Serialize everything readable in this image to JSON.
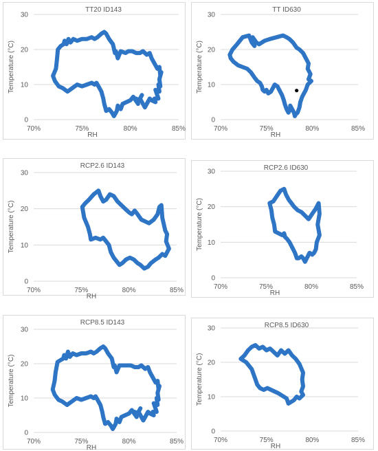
{
  "style": {
    "line_color": "#2e75c6",
    "grid_color": "#d9d9d9",
    "marker_color": "#000000"
  },
  "chart_data": [
    {
      "type": "line",
      "title": "TT20 ID143",
      "xlabel": "RH",
      "ylabel": "Temperature (°C)",
      "xlim": [
        70,
        85
      ],
      "ylim": [
        0,
        30
      ],
      "x_ticks": [
        "70%",
        "75%",
        "80%",
        "85%"
      ],
      "y_ticks": [
        "0",
        "10",
        "20",
        "30"
      ],
      "grid": "y-major",
      "series": [
        {
          "x": [
            72.0,
            72.3,
            72.4,
            72.5,
            72.8,
            73.1,
            73.2,
            73.4,
            73.6,
            73.8,
            74.1,
            74.5,
            75.0,
            75.5,
            76.0,
            76.3,
            76.6,
            77.0,
            77.3,
            77.5,
            77.8,
            78.2,
            78.4,
            78.5,
            78.7,
            79.0,
            79.5,
            79.8,
            80.2,
            80.6,
            81.0,
            81.3,
            81.7,
            82.0,
            82.2,
            82.5,
            82.8,
            83.0,
            83.1,
            83.2,
            83.0,
            83.1,
            82.9,
            83.0,
            82.6,
            82.9,
            82.5,
            82.6,
            82.2,
            82.0,
            81.5,
            81.0,
            81.2,
            80.9,
            80.6,
            80.8,
            80.3,
            80.0,
            79.6,
            79.2,
            79.0,
            78.7,
            78.6,
            78.3,
            78.1,
            77.8,
            77.5,
            77.3,
            77.2,
            77.0,
            76.8,
            76.6,
            76.5,
            76.3,
            76.0,
            75.5,
            75.0,
            74.5,
            74.0,
            73.5,
            73.0,
            72.6,
            72.2,
            72.0
          ],
          "y": [
            12.5,
            14.5,
            17.0,
            20.0,
            21.0,
            21.5,
            22.5,
            21.5,
            23.0,
            22.0,
            23.0,
            22.5,
            23.0,
            23.0,
            23.5,
            23.0,
            23.5,
            24.5,
            25.0,
            24.5,
            23.0,
            21.5,
            19.0,
            19.5,
            17.5,
            19.5,
            19.0,
            19.5,
            19.5,
            19.0,
            19.0,
            19.5,
            18.5,
            19.0,
            17.5,
            16.0,
            14.5,
            15.0,
            12.5,
            13.5,
            11.5,
            9.5,
            10.0,
            8.0,
            8.5,
            6.0,
            6.0,
            5.0,
            5.5,
            6.0,
            3.5,
            6.0,
            7.0,
            5.5,
            6.0,
            4.5,
            6.5,
            5.5,
            5.0,
            4.5,
            3.0,
            4.0,
            2.5,
            1.0,
            2.0,
            3.0,
            2.5,
            4.5,
            6.0,
            8.0,
            9.0,
            10.0,
            10.5,
            10.0,
            10.5,
            10.0,
            9.5,
            10.0,
            9.0,
            8.0,
            9.0,
            9.5,
            11.0,
            12.5
          ]
        }
      ]
    },
    {
      "type": "line",
      "title": "TT ID630",
      "xlabel": "RH",
      "ylabel": "Temperature (°C)",
      "xlim": [
        70,
        85
      ],
      "ylim": [
        0,
        30
      ],
      "x_ticks": [
        "70%",
        "75%",
        "80%",
        "85%"
      ],
      "y_ticks": [
        "0",
        "10",
        "20",
        "30"
      ],
      "grid": "y-major",
      "marker": {
        "x": 78.3,
        "y": 8.3
      },
      "series": [
        {
          "x": [
            71.0,
            71.3,
            71.8,
            72.4,
            73.1,
            73.4,
            73.7,
            73.5,
            73.9,
            74.2,
            74.8,
            75.4,
            76.1,
            76.8,
            77.2,
            77.5,
            77.9,
            78.3,
            78.6,
            79.0,
            79.3,
            79.6,
            79.5,
            79.8,
            79.6,
            79.9,
            79.5,
            79.3,
            79.1,
            78.9,
            78.7,
            78.6,
            78.4,
            78.2,
            78.1,
            78.0,
            77.8,
            77.6,
            77.6,
            77.4,
            77.2,
            77.0,
            76.9,
            76.7,
            76.4,
            76.2,
            75.9,
            75.7,
            75.5,
            75.2,
            75.0,
            74.8,
            74.6,
            74.5,
            74.3,
            74.0,
            73.7,
            73.3,
            72.9,
            72.4,
            71.9,
            71.4,
            71.1,
            71.0
          ],
          "y": [
            18.5,
            20.0,
            21.5,
            23.5,
            24.0,
            22.0,
            21.0,
            23.5,
            22.0,
            21.5,
            22.5,
            23.0,
            23.5,
            24.0,
            23.5,
            23.0,
            22.0,
            20.5,
            20.0,
            19.0,
            17.5,
            16.0,
            14.5,
            13.0,
            11.5,
            11.0,
            10.0,
            8.5,
            7.5,
            6.5,
            5.0,
            3.5,
            2.0,
            1.5,
            1.0,
            2.0,
            3.0,
            4.0,
            3.0,
            2.0,
            3.0,
            4.5,
            5.5,
            7.0,
            8.5,
            9.5,
            10.0,
            9.0,
            8.0,
            7.5,
            8.5,
            8.0,
            8.5,
            9.5,
            10.5,
            11.0,
            12.0,
            13.5,
            14.5,
            15.0,
            15.5,
            16.5,
            17.5,
            18.5
          ]
        }
      ]
    },
    {
      "type": "line",
      "title": "RCP2.6 ID143",
      "xlabel": "RH",
      "ylabel": "Temperature (°C)",
      "xlim": [
        70,
        85
      ],
      "ylim": [
        0,
        30
      ],
      "x_ticks": [
        "70%",
        "75%",
        "80%",
        "85%"
      ],
      "y_ticks": [
        "0",
        "10",
        "20",
        "30"
      ],
      "grid": "y-major",
      "series": [
        {
          "x": [
            75.1,
            75.4,
            75.8,
            76.3,
            76.8,
            77.0,
            77.3,
            77.6,
            78.0,
            78.4,
            78.8,
            79.2,
            79.6,
            80.0,
            80.3,
            80.6,
            80.9,
            81.3,
            81.7,
            82.1,
            82.6,
            83.0,
            83.2,
            83.4,
            83.5,
            83.8,
            84.0,
            83.9,
            84.2,
            83.8,
            83.5,
            83.1,
            82.8,
            82.3,
            82.0,
            81.6,
            81.2,
            80.9,
            80.5,
            80.1,
            79.7,
            79.3,
            79.0,
            78.7,
            78.4,
            78.1,
            77.9,
            77.6,
            77.3,
            77.0,
            76.5,
            76.0,
            75.9,
            75.7,
            75.3,
            75.1
          ],
          "y": [
            20.5,
            21.5,
            22.5,
            24.0,
            25.0,
            23.5,
            22.0,
            22.5,
            24.0,
            23.5,
            22.0,
            21.0,
            20.0,
            19.0,
            18.5,
            19.5,
            18.5,
            17.0,
            16.5,
            16.0,
            17.0,
            18.5,
            20.5,
            21.0,
            17.5,
            14.0,
            13.0,
            11.0,
            9.0,
            7.0,
            7.5,
            6.5,
            6.0,
            5.0,
            4.0,
            3.5,
            4.5,
            5.0,
            6.0,
            6.5,
            6.0,
            5.0,
            4.5,
            5.5,
            6.5,
            8.0,
            10.0,
            11.0,
            12.0,
            11.5,
            12.0,
            11.5,
            13.0,
            15.0,
            17.5,
            20.5
          ]
        }
      ]
    },
    {
      "type": "line",
      "title": "RCP2.6 ID630",
      "xlabel": "RH",
      "ylabel": "Temperature (°C)",
      "xlim": [
        70,
        85
      ],
      "ylim": [
        0,
        30
      ],
      "x_ticks": [
        "70%",
        "75%",
        "80%",
        "85%"
      ],
      "y_ticks": [
        "0",
        "10",
        "20",
        "30"
      ],
      "grid": "y-major",
      "series": [
        {
          "x": [
            75.4,
            75.8,
            76.2,
            76.6,
            77.0,
            77.2,
            77.5,
            77.8,
            78.1,
            78.5,
            78.9,
            79.3,
            79.7,
            80.1,
            80.5,
            80.8,
            80.9,
            80.7,
            80.9,
            80.6,
            80.5,
            80.3,
            80.1,
            79.8,
            79.6,
            79.4,
            79.3,
            79.1,
            78.9,
            78.6,
            78.4,
            78.2,
            77.9,
            77.6,
            77.3,
            77.1,
            77.0,
            76.8,
            76.4,
            76.0,
            75.9,
            75.7,
            75.6,
            75.4
          ],
          "y": [
            21.0,
            21.5,
            23.0,
            24.5,
            25.0,
            23.5,
            22.0,
            21.0,
            20.0,
            19.0,
            18.5,
            17.5,
            16.5,
            18.0,
            19.5,
            21.0,
            18.0,
            15.0,
            12.0,
            10.0,
            8.0,
            7.0,
            6.5,
            7.0,
            6.0,
            5.0,
            4.5,
            5.5,
            6.0,
            5.5,
            5.5,
            7.0,
            8.5,
            10.0,
            11.0,
            11.5,
            12.5,
            12.0,
            12.5,
            13.0,
            15.0,
            17.0,
            19.0,
            21.0
          ]
        }
      ]
    },
    {
      "type": "line",
      "title": "RCP8.5 ID143",
      "xlabel": "RH",
      "ylabel": "Temperature (°C)",
      "xlim": [
        70,
        85
      ],
      "ylim": [
        0,
        30
      ],
      "x_ticks": [
        "70%",
        "75%",
        "80%",
        "85%"
      ],
      "y_ticks": [
        "0",
        "10",
        "20",
        "30"
      ],
      "grid": "y-major",
      "series": [
        {
          "x": [
            72.0,
            72.2,
            72.3,
            72.5,
            72.8,
            73.1,
            73.2,
            73.4,
            73.6,
            73.8,
            74.1,
            74.5,
            75.0,
            75.5,
            76.0,
            76.3,
            76.6,
            77.0,
            77.3,
            77.5,
            77.8,
            78.2,
            78.4,
            78.5,
            78.7,
            79.0,
            79.5,
            79.8,
            80.2,
            80.6,
            81.0,
            81.3,
            81.7,
            82.0,
            82.2,
            82.5,
            82.8,
            83.0,
            83.1,
            83.2,
            83.0,
            83.1,
            82.9,
            83.0,
            82.6,
            82.9,
            82.5,
            82.6,
            82.2,
            82.0,
            81.5,
            81.0,
            81.2,
            80.9,
            80.6,
            80.8,
            80.3,
            80.0,
            79.6,
            79.2,
            79.0,
            78.7,
            78.6,
            78.3,
            78.1,
            77.8,
            77.5,
            77.3,
            77.2,
            77.0,
            76.8,
            76.6,
            76.5,
            76.3,
            76.0,
            75.5,
            75.0,
            74.5,
            74.0,
            73.5,
            73.0,
            72.6,
            72.2,
            72.0
          ],
          "y": [
            12.5,
            15.0,
            17.5,
            20.5,
            21.0,
            21.5,
            22.5,
            21.5,
            23.5,
            22.0,
            23.0,
            22.5,
            23.0,
            23.0,
            23.5,
            23.0,
            23.5,
            24.5,
            25.0,
            24.5,
            23.0,
            21.5,
            19.0,
            19.5,
            17.5,
            19.5,
            19.5,
            19.5,
            19.5,
            19.0,
            19.0,
            19.5,
            18.5,
            19.0,
            17.5,
            16.0,
            14.5,
            15.0,
            12.5,
            13.5,
            11.5,
            9.5,
            10.0,
            8.0,
            8.5,
            6.0,
            6.0,
            5.0,
            5.5,
            6.0,
            3.5,
            6.0,
            7.0,
            5.5,
            6.0,
            4.5,
            6.5,
            5.5,
            5.0,
            4.5,
            3.0,
            4.0,
            2.5,
            1.0,
            2.0,
            3.0,
            2.5,
            4.5,
            6.0,
            8.0,
            9.0,
            10.0,
            10.5,
            10.0,
            10.5,
            10.0,
            9.5,
            10.0,
            9.0,
            8.0,
            9.0,
            9.5,
            11.0,
            12.5
          ]
        }
      ]
    },
    {
      "type": "line",
      "title": "RCP8.5 ID630",
      "xlabel": "RH",
      "ylabel": "Temperature (°C)",
      "xlim": [
        70,
        85
      ],
      "ylim": [
        0,
        30
      ],
      "x_ticks": [
        "70%",
        "75%",
        "80%",
        "85%"
      ],
      "y_ticks": [
        "0",
        "10",
        "20",
        "30"
      ],
      "grid": "y-major",
      "series": [
        {
          "x": [
            72.2,
            72.6,
            73.0,
            73.4,
            73.8,
            74.2,
            74.6,
            75.0,
            75.4,
            75.8,
            76.2,
            76.6,
            77.0,
            77.4,
            77.8,
            78.2,
            78.6,
            79.0,
            78.9,
            79.0,
            78.8,
            79.0,
            78.6,
            78.3,
            78.0,
            77.7,
            77.4,
            77.2,
            76.9,
            76.6,
            76.3,
            75.9,
            75.5,
            75.1,
            74.7,
            74.3,
            74.0,
            73.8,
            73.6,
            73.4,
            73.1,
            72.8,
            72.5,
            72.2
          ],
          "y": [
            21.0,
            22.0,
            23.5,
            24.5,
            25.0,
            24.0,
            24.5,
            23.5,
            24.0,
            23.0,
            22.0,
            23.5,
            22.5,
            23.5,
            22.0,
            21.0,
            19.5,
            17.0,
            15.0,
            13.0,
            11.5,
            10.5,
            9.5,
            10.0,
            9.0,
            8.5,
            8.0,
            9.5,
            10.0,
            10.5,
            11.0,
            11.5,
            12.0,
            12.5,
            12.0,
            12.5,
            13.5,
            15.0,
            16.5,
            18.0,
            19.0,
            20.0,
            20.5,
            21.0
          ]
        }
      ]
    }
  ]
}
